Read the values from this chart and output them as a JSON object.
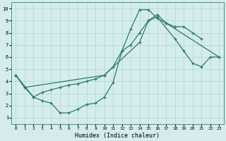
{
  "xlabel": "Humidex (Indice chaleur)",
  "xlim": [
    -0.5,
    23.5
  ],
  "ylim": [
    0.5,
    10.5
  ],
  "xticks": [
    0,
    1,
    2,
    3,
    4,
    5,
    6,
    7,
    8,
    9,
    10,
    11,
    12,
    13,
    14,
    15,
    16,
    17,
    18,
    19,
    20,
    21,
    22,
    23
  ],
  "yticks": [
    1,
    2,
    3,
    4,
    5,
    6,
    7,
    8,
    9,
    10
  ],
  "line_color": "#2a7a68",
  "bg_color": "#d4edeb",
  "grid_color": "#b8d8d5",
  "line1_x": [
    0,
    1,
    2,
    3,
    4,
    5,
    6,
    7,
    8,
    9,
    10,
    11,
    12,
    13,
    14,
    15,
    16,
    17,
    18,
    19,
    20,
    21
  ],
  "line1_y": [
    4.5,
    3.5,
    2.7,
    2.4,
    2.2,
    1.4,
    1.4,
    1.7,
    2.1,
    2.2,
    2.7,
    3.9,
    6.5,
    8.3,
    9.9,
    9.9,
    9.2,
    8.8,
    8.5,
    8.5,
    8.0,
    7.5
  ],
  "line2_x": [
    0,
    2,
    3,
    4,
    5,
    6,
    7,
    8,
    9,
    10,
    11,
    12,
    13,
    14,
    15,
    16,
    17,
    23
  ],
  "line2_y": [
    4.5,
    2.7,
    3.1,
    3.3,
    3.5,
    3.7,
    3.8,
    4.0,
    4.2,
    4.5,
    5.2,
    6.5,
    7.0,
    8.0,
    9.0,
    9.5,
    8.8,
    6.0
  ],
  "line3_x": [
    0,
    1,
    10,
    14,
    15,
    16,
    18,
    19,
    20,
    21,
    22,
    23
  ],
  "line3_y": [
    4.5,
    3.5,
    4.5,
    7.2,
    9.0,
    9.3,
    7.5,
    6.5,
    5.5,
    5.2,
    6.0,
    6.0
  ]
}
